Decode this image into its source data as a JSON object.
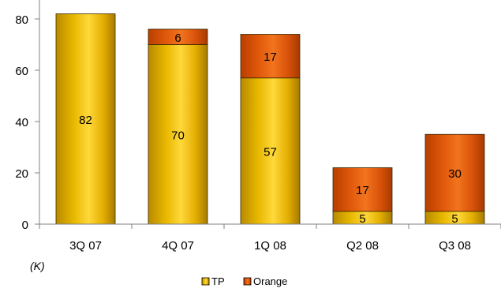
{
  "chart_data": {
    "type": "bar",
    "stacked": true,
    "categories": [
      "3Q 07",
      "4Q 07",
      "1Q 08",
      "Q2 08",
      "Q3 08"
    ],
    "series": [
      {
        "name": "TP",
        "values": [
          82,
          70,
          57,
          5,
          5
        ],
        "color": "#E8B800",
        "labels": [
          "82",
          "70",
          "57",
          "5",
          "5"
        ]
      },
      {
        "name": "Orange",
        "values": [
          0,
          6,
          17,
          17,
          30
        ],
        "color": "#E0580A",
        "labels": [
          "",
          "6",
          "17",
          "17",
          "30"
        ]
      }
    ],
    "ylim": [
      0,
      80
    ],
    "yticks": [
      "0",
      "20",
      "40",
      "60",
      "80"
    ],
    "unit_note": "(K)",
    "legend_position": "bottom-center",
    "grid": false
  }
}
